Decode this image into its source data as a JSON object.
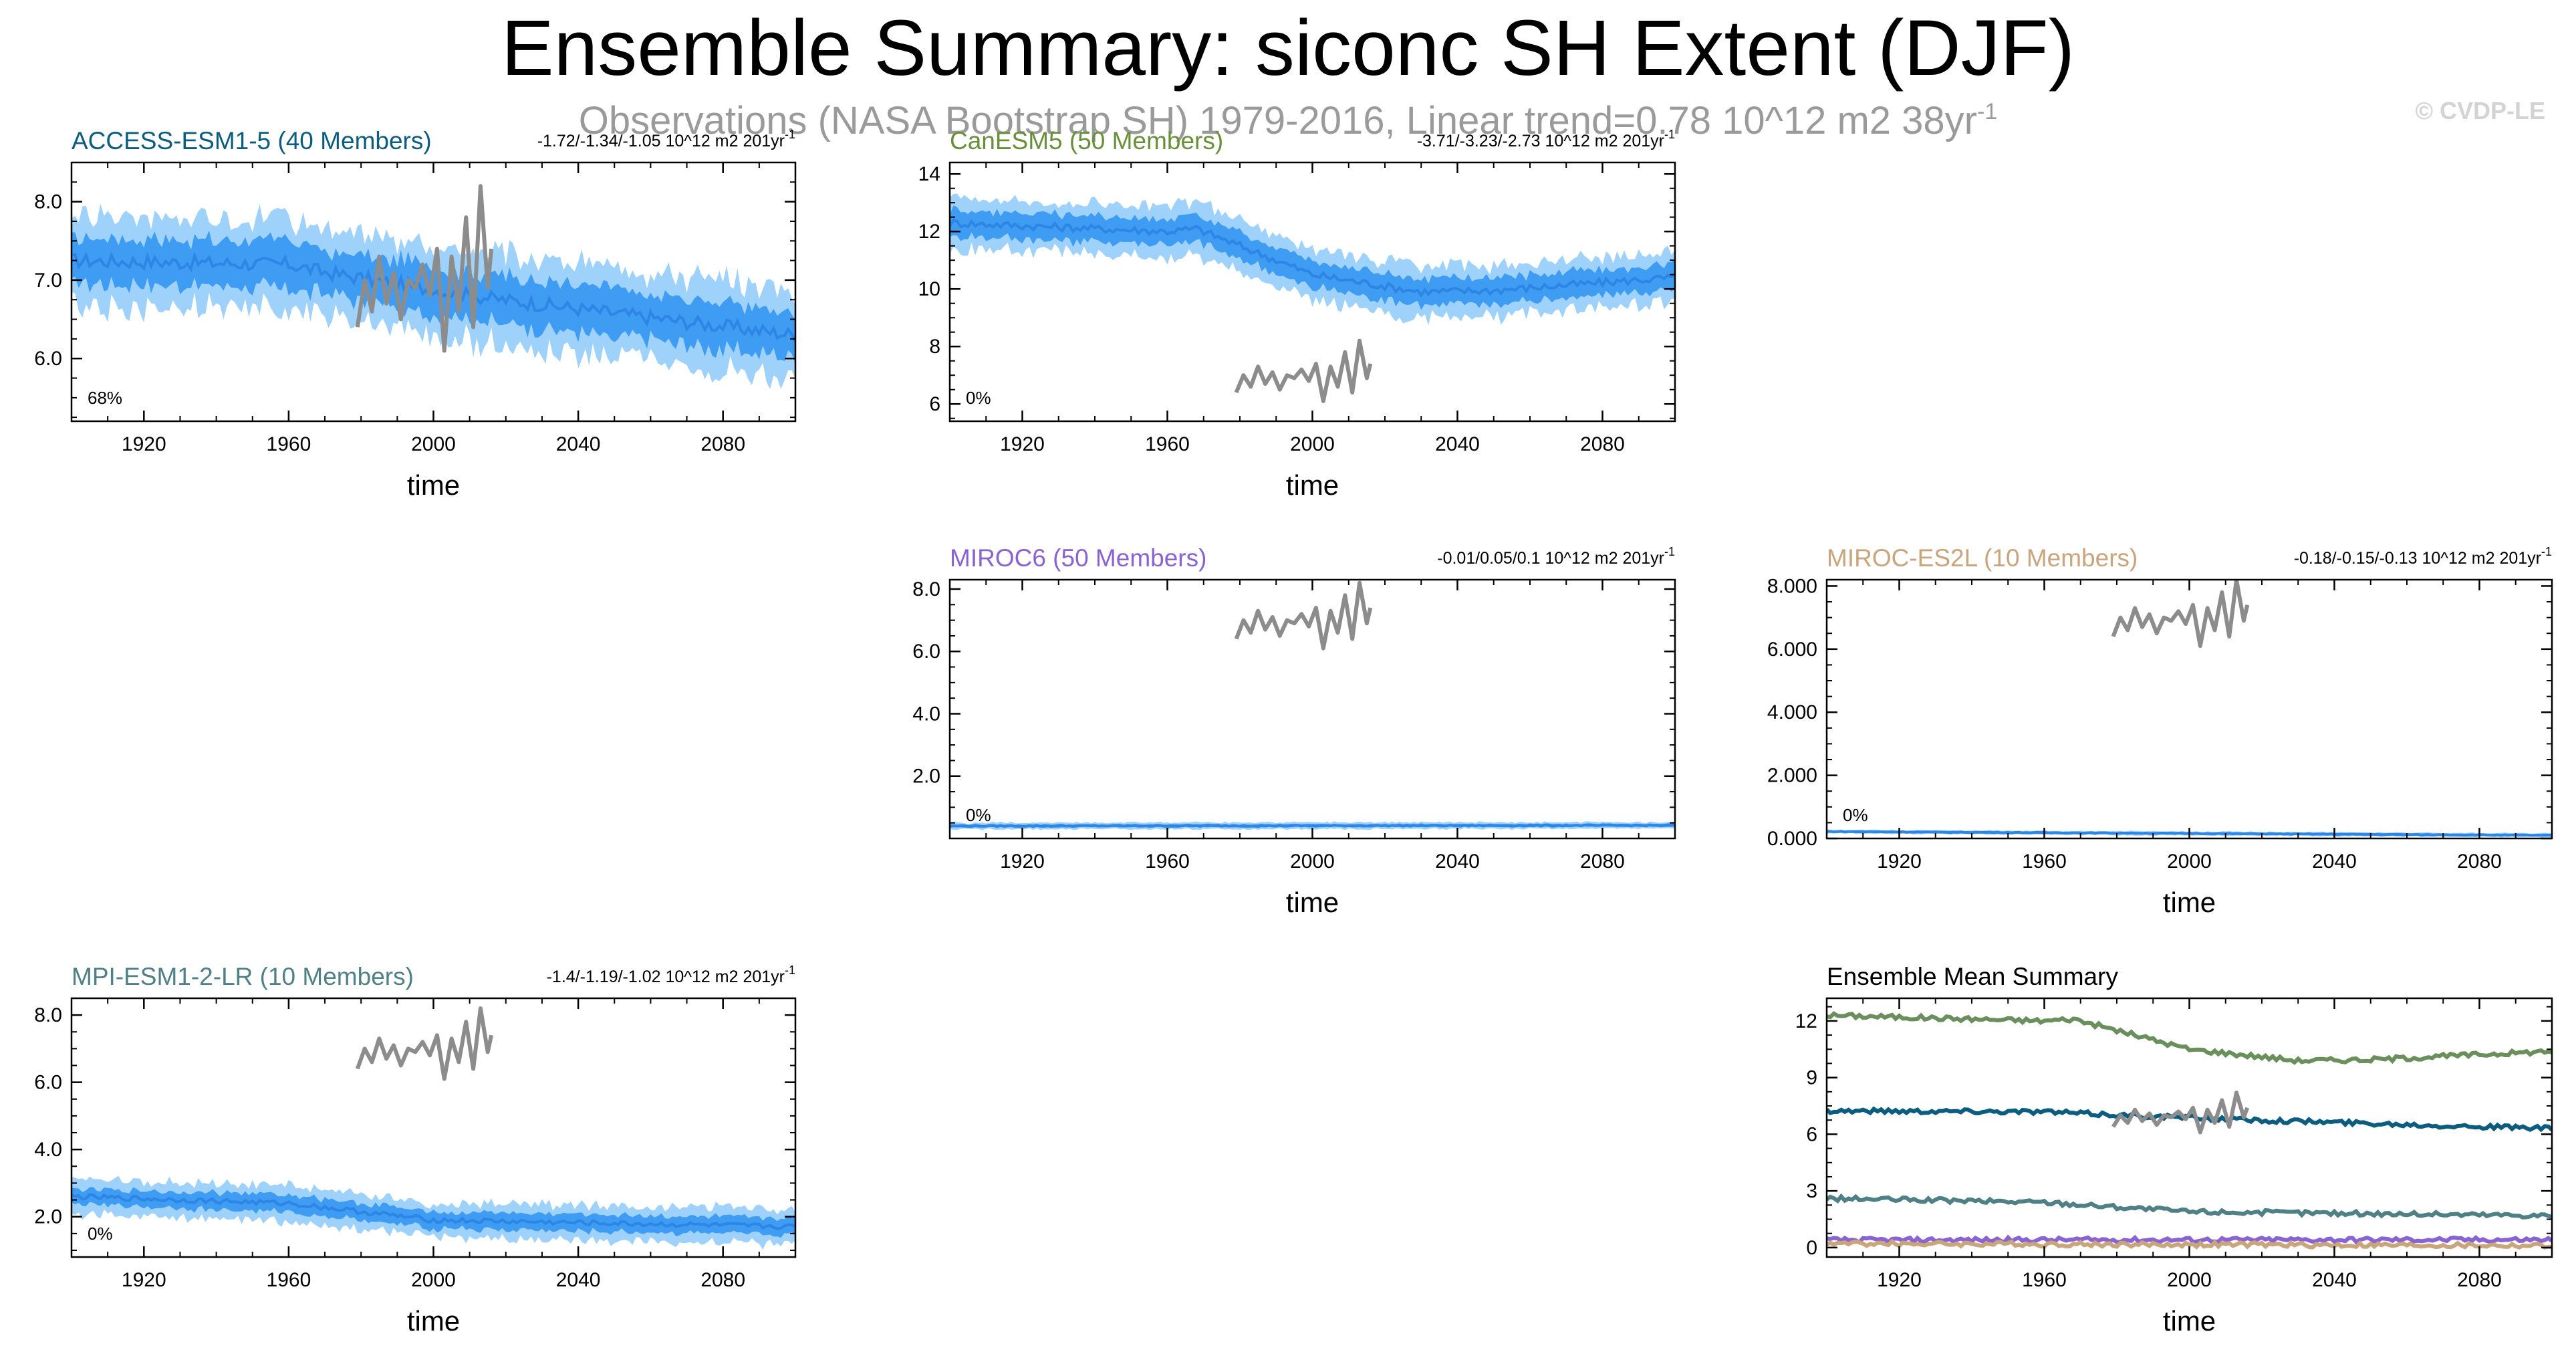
{
  "title": "Ensemble Summary: siconc SH Extent (DJF)",
  "subtitle": "Observations (NASA Bootstrap SH) 1979-2016, Linear trend=0.78 10^12 m2 38yr",
  "subtitle_sup": "-1",
  "copyright": "© CVDP-LE",
  "colors": {
    "band_outer": "#9fd2fb",
    "band_inner": "#3e9cf3",
    "ens_mean": "#2d86e6",
    "obs": "#8c8c8c"
  },
  "chart_data": [
    {
      "type": "area",
      "id": "access",
      "title": "ACCESS-ESM1-5 (40 Members)",
      "title_color": "#0c5c80",
      "trend": "-1.72/-1.34/-1.05 10^12 m2 201yr",
      "trend_sup": "-1",
      "pct": "68%",
      "xlabel": "time",
      "xlim": [
        1900,
        2100
      ],
      "xticks": [
        1920,
        1960,
        2000,
        2040,
        2080
      ],
      "ylim": [
        5.2,
        8.5
      ],
      "yticks": [
        6.0,
        7.0,
        8.0
      ],
      "ytick_labels": [
        "6.0",
        "7.0",
        "8.0"
      ],
      "mean_x": [
        1900,
        1960,
        1970,
        2010,
        2100
      ],
      "mean_y": [
        7.25,
        7.2,
        7.1,
        6.8,
        6.3
      ],
      "spread_inner": 0.3,
      "spread_outer": 0.55,
      "obs_x": [
        1979,
        1981,
        1983,
        1985,
        1987,
        1989,
        1991,
        1993,
        1995,
        1997,
        1999,
        2001,
        2003,
        2005,
        2007,
        2009,
        2011,
        2013,
        2015,
        2016
      ],
      "obs_y": [
        6.4,
        7.0,
        6.6,
        7.3,
        6.7,
        7.1,
        6.5,
        7.0,
        6.9,
        7.2,
        6.8,
        7.4,
        6.1,
        7.3,
        6.6,
        7.8,
        6.4,
        8.2,
        6.9,
        7.4
      ]
    },
    {
      "type": "area",
      "id": "cesm",
      "title": "CanESM5 (50 Members)",
      "title_color": "#6a8f3b",
      "trend": "-3.71/-3.23/-2.73 10^12 m2 201yr",
      "trend_sup": "-1",
      "pct": "0%",
      "xlabel": "time",
      "xlim": [
        1900,
        2100
      ],
      "xticks": [
        1920,
        1960,
        2000,
        2040,
        2080
      ],
      "ylim": [
        5.4,
        14.4
      ],
      "yticks": [
        6,
        8,
        10,
        12,
        14
      ],
      "ytick_labels": [
        "6",
        "8",
        "10",
        "12",
        "14"
      ],
      "mean_x": [
        1900,
        1960,
        1968,
        2000,
        2030,
        2050,
        2100
      ],
      "mean_y": [
        12.3,
        12.0,
        12.1,
        10.5,
        9.9,
        9.95,
        10.4
      ],
      "spread_inner": 0.45,
      "spread_outer": 0.85,
      "obs_x": [
        1979,
        1981,
        1983,
        1985,
        1987,
        1989,
        1991,
        1993,
        1995,
        1997,
        1999,
        2001,
        2003,
        2005,
        2007,
        2009,
        2011,
        2013,
        2015,
        2016
      ],
      "obs_y": [
        6.4,
        7.0,
        6.6,
        7.3,
        6.7,
        7.1,
        6.5,
        7.0,
        6.9,
        7.2,
        6.8,
        7.4,
        6.1,
        7.3,
        6.6,
        7.8,
        6.4,
        8.2,
        6.9,
        7.4
      ]
    },
    {
      "type": "area",
      "id": "miroc6",
      "title": "MIROC6 (50 Members)",
      "title_color": "#8a63d2",
      "trend": "-0.01/0.05/0.1 10^12 m2 201yr",
      "trend_sup": "-1",
      "pct": "0%",
      "xlabel": "time",
      "xlim": [
        1900,
        2100
      ],
      "xticks": [
        1920,
        1960,
        2000,
        2040,
        2080
      ],
      "ylim": [
        0,
        8.3
      ],
      "yticks": [
        2.0,
        4.0,
        6.0,
        8.0
      ],
      "ytick_labels": [
        "2.0",
        "4.0",
        "6.0",
        "8.0"
      ],
      "mean_x": [
        1900,
        2100
      ],
      "mean_y": [
        0.4,
        0.42
      ],
      "spread_inner": 0.05,
      "spread_outer": 0.1,
      "obs_x": [
        1979,
        1981,
        1983,
        1985,
        1987,
        1989,
        1991,
        1993,
        1995,
        1997,
        1999,
        2001,
        2003,
        2005,
        2007,
        2009,
        2011,
        2013,
        2015,
        2016
      ],
      "obs_y": [
        6.4,
        7.0,
        6.6,
        7.3,
        6.7,
        7.1,
        6.5,
        7.0,
        6.9,
        7.2,
        6.8,
        7.4,
        6.1,
        7.3,
        6.6,
        7.8,
        6.4,
        8.2,
        6.9,
        7.4
      ]
    },
    {
      "type": "area",
      "id": "miroces2l",
      "title": "MIROC-ES2L (10 Members)",
      "title_color": "#c9a57c",
      "trend": "-0.18/-0.15/-0.13 10^12 m2 201yr",
      "trend_sup": "-1",
      "pct": "0%",
      "xlabel": "time",
      "xlim": [
        1900,
        2100
      ],
      "xticks": [
        1920,
        1960,
        2000,
        2040,
        2080
      ],
      "ylim": [
        0,
        8.2
      ],
      "yticks": [
        0.0,
        2.0,
        4.0,
        6.0,
        8.0
      ],
      "ytick_labels": [
        "0.000",
        "2.000",
        "4.000",
        "6.000",
        "8.000"
      ],
      "mean_x": [
        1900,
        1930,
        2100
      ],
      "mean_y": [
        0.22,
        0.2,
        0.1
      ],
      "spread_inner": 0.03,
      "spread_outer": 0.06,
      "obs_x": [
        1979,
        1981,
        1983,
        1985,
        1987,
        1989,
        1991,
        1993,
        1995,
        1997,
        1999,
        2001,
        2003,
        2005,
        2007,
        2009,
        2011,
        2013,
        2015,
        2016
      ],
      "obs_y": [
        6.4,
        7.0,
        6.6,
        7.3,
        6.7,
        7.1,
        6.5,
        7.0,
        6.9,
        7.2,
        6.8,
        7.4,
        6.1,
        7.3,
        6.6,
        7.8,
        6.4,
        8.2,
        6.9,
        7.4
      ]
    },
    {
      "type": "area",
      "id": "mpi",
      "title": "MPI-ESM1-2-LR (10 Members)",
      "title_color": "#4e8086",
      "trend": "-1.4/-1.19/-1.02 10^12 m2 201yr",
      "trend_sup": "-1",
      "pct": "0%",
      "xlabel": "time",
      "xlim": [
        1900,
        2100
      ],
      "xticks": [
        1920,
        1960,
        2000,
        2040,
        2080
      ],
      "ylim": [
        0.8,
        8.5
      ],
      "yticks": [
        2.0,
        4.0,
        6.0,
        8.0
      ],
      "ytick_labels": [
        "2.0",
        "4.0",
        "6.0",
        "8.0"
      ],
      "mean_x": [
        1900,
        1960,
        2000,
        2100
      ],
      "mean_y": [
        2.6,
        2.4,
        1.9,
        1.7
      ],
      "spread_inner": 0.25,
      "spread_outer": 0.5,
      "obs_x": [
        1979,
        1981,
        1983,
        1985,
        1987,
        1989,
        1991,
        1993,
        1995,
        1997,
        1999,
        2001,
        2003,
        2005,
        2007,
        2009,
        2011,
        2013,
        2015,
        2016
      ],
      "obs_y": [
        6.4,
        7.0,
        6.6,
        7.3,
        6.7,
        7.1,
        6.5,
        7.0,
        6.9,
        7.2,
        6.8,
        7.4,
        6.1,
        7.3,
        6.6,
        7.8,
        6.4,
        8.2,
        6.9,
        7.4
      ]
    },
    {
      "type": "line",
      "id": "summary",
      "title": "Ensemble Mean Summary",
      "title_color": "#000000",
      "xlabel": "time",
      "xlim": [
        1900,
        2100
      ],
      "xticks": [
        1920,
        1960,
        2000,
        2040,
        2080
      ],
      "ylim": [
        -0.5,
        13.2
      ],
      "yticks": [
        0,
        3,
        6,
        9,
        12
      ],
      "ytick_labels": [
        "0",
        "3",
        "6",
        "9",
        "12"
      ],
      "series": [
        {
          "color": "#6a8f5c",
          "x": [
            1900,
            1960,
            1968,
            2000,
            2030,
            2050,
            2100
          ],
          "y": [
            12.3,
            12.0,
            12.1,
            10.5,
            9.9,
            9.95,
            10.4
          ]
        },
        {
          "color": "#0c5c80",
          "x": [
            1900,
            1960,
            1970,
            2010,
            2100
          ],
          "y": [
            7.25,
            7.2,
            7.1,
            6.8,
            6.3
          ]
        },
        {
          "color": "#4e8086",
          "x": [
            1900,
            1960,
            2000,
            2100
          ],
          "y": [
            2.6,
            2.4,
            1.9,
            1.7
          ]
        },
        {
          "color": "#8a63d2",
          "x": [
            1900,
            2100
          ],
          "y": [
            0.4,
            0.42
          ]
        },
        {
          "color": "#c9a57c",
          "x": [
            1900,
            1930,
            2100
          ],
          "y": [
            0.22,
            0.2,
            0.1
          ]
        }
      ],
      "obs_x": [
        1979,
        1981,
        1983,
        1985,
        1987,
        1989,
        1991,
        1993,
        1995,
        1997,
        1999,
        2001,
        2003,
        2005,
        2007,
        2009,
        2011,
        2013,
        2015,
        2016
      ],
      "obs_y": [
        6.4,
        7.0,
        6.6,
        7.3,
        6.7,
        7.1,
        6.5,
        7.0,
        6.9,
        7.2,
        6.8,
        7.4,
        6.1,
        7.3,
        6.6,
        7.8,
        6.4,
        8.2,
        6.9,
        7.4
      ]
    }
  ]
}
